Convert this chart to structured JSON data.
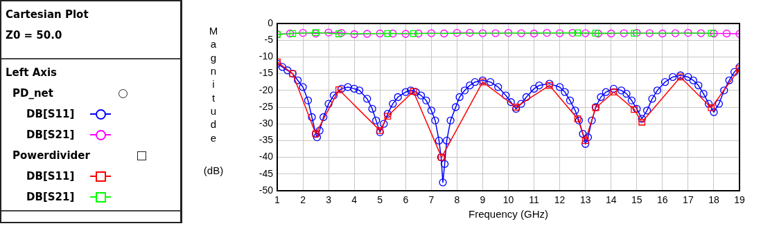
{
  "chart_data": {
    "type": "line",
    "title": "Cartesian Plot",
    "subtitle": "Z0 = 50.0",
    "legend_title": "Left Axis",
    "annotations": [
      "PD_net",
      "Powerdivider"
    ],
    "xlabel": "Frequency (GHz)",
    "ylabel": "Magnitude (dB)",
    "xlim": [
      1,
      19
    ],
    "xticks": [
      1,
      2,
      3,
      4,
      5,
      6,
      7,
      8,
      9,
      10,
      11,
      12,
      13,
      14,
      15,
      16,
      17,
      18,
      19
    ],
    "ylim": [
      -50,
      0
    ],
    "yticks": [
      -50,
      -45,
      -40,
      -35,
      -30,
      -25,
      -20,
      -15,
      -10,
      -5,
      0
    ],
    "grid": true,
    "legend": "left",
    "line_style": "solid",
    "series": [
      {
        "name": "DB[S11]",
        "color": "#0000ff",
        "marker": "circle",
        "x": [
          1,
          1.2,
          1.4,
          1.6,
          1.8,
          2.0,
          2.2,
          2.35,
          2.5,
          2.55,
          2.65,
          2.8,
          3.0,
          3.2,
          3.5,
          3.75,
          4.0,
          4.2,
          4.5,
          4.7,
          4.85,
          5.0,
          5.15,
          5.3,
          5.5,
          5.7,
          6.0,
          6.2,
          6.4,
          6.6,
          6.8,
          7.0,
          7.15,
          7.3,
          7.38,
          7.45,
          7.52,
          7.6,
          7.75,
          7.95,
          8.1,
          8.3,
          8.5,
          8.7,
          9.0,
          9.3,
          9.6,
          9.9,
          10.1,
          10.3,
          10.5,
          10.7,
          11.0,
          11.2,
          11.6,
          12.0,
          12.2,
          12.4,
          12.6,
          12.75,
          12.9,
          13.0,
          13.1,
          13.25,
          13.4,
          13.6,
          13.8,
          14.1,
          14.4,
          14.6,
          14.8,
          15.0,
          15.2,
          15.4,
          15.6,
          15.8,
          16.1,
          16.4,
          16.7,
          17.0,
          17.2,
          17.4,
          17.6,
          17.8,
          18.0,
          18.2,
          18.4,
          18.6,
          18.8,
          19.0
        ],
        "values": [
          -12,
          -13,
          -14,
          -15,
          -17,
          -19,
          -23,
          -28,
          -33,
          -34,
          -32,
          -28,
          -24,
          -21.5,
          -19.5,
          -19,
          -19.5,
          -20,
          -22.5,
          -25.5,
          -29,
          -32.5,
          -30,
          -27,
          -24,
          -22,
          -20.5,
          -20,
          -20.5,
          -21.5,
          -23,
          -26,
          -29,
          -35,
          -40,
          -47.5,
          -42,
          -35,
          -29,
          -25,
          -22,
          -20,
          -18.5,
          -17.5,
          -17,
          -17.5,
          -19,
          -21.5,
          -23.5,
          -25.5,
          -24,
          -22,
          -19.5,
          -18.5,
          -18,
          -19,
          -20.5,
          -23,
          -26,
          -29,
          -33,
          -36,
          -34,
          -29,
          -25,
          -22,
          -20.5,
          -19.5,
          -20,
          -21,
          -23,
          -25.5,
          -28.5,
          -26,
          -22.5,
          -20,
          -17.5,
          -16,
          -15.5,
          -16,
          -17,
          -18.5,
          -21,
          -24,
          -26.5,
          -24,
          -20,
          -17,
          -14.5,
          -13
        ]
      },
      {
        "name": "DB[S21]",
        "color": "#ff00ff",
        "marker": "circle",
        "x": [
          1,
          1.5,
          2,
          2.5,
          3,
          3.5,
          4,
          4.5,
          5,
          5.5,
          6,
          6.5,
          7,
          7.5,
          8,
          8.5,
          9,
          9.5,
          10,
          10.5,
          11,
          11.5,
          12,
          12.5,
          13,
          13.5,
          14,
          14.5,
          15,
          15.5,
          16,
          16.5,
          17,
          17.5,
          18,
          18.5,
          19
        ],
        "values": [
          -3.2,
          -3,
          -2.8,
          -3,
          -2.7,
          -2.8,
          -3.2,
          -3.1,
          -3,
          -3,
          -3.1,
          -3,
          -2.9,
          -3,
          -2.8,
          -2.8,
          -2.9,
          -2.9,
          -2.8,
          -2.9,
          -3,
          -2.8,
          -2.9,
          -2.8,
          -2.9,
          -3,
          -3,
          -2.9,
          -2.8,
          -2.9,
          -3,
          -2.9,
          -2.8,
          -2.9,
          -3,
          -3,
          -3.1
        ]
      },
      {
        "name": "DB[S11]",
        "color": "#ff0000",
        "marker": "square",
        "x": [
          1,
          1.6,
          2.5,
          3.4,
          5.0,
          5.3,
          6.3,
          7.4,
          9.0,
          10.3,
          11.6,
          12.7,
          13.0,
          13.4,
          14.1,
          14.9,
          15.2,
          16.7,
          17.9,
          19
        ],
        "values": [
          -11.5,
          -15,
          -33,
          -19.8,
          -32,
          -27.7,
          -20.3,
          -40,
          -17.5,
          -25,
          -18.5,
          -28.5,
          -35,
          -25.2,
          -20.5,
          -25.7,
          -29.5,
          -16,
          -25.2,
          -13.5
        ]
      },
      {
        "name": "DB[S21]",
        "color": "#00ff00",
        "marker": "square",
        "x": [
          1,
          1.6,
          2.5,
          3.4,
          5.3,
          6.3,
          12.7,
          13.4,
          14.9,
          17.9
        ],
        "values": [
          -3.3,
          -3,
          -2.7,
          -3.1,
          -3,
          -3,
          -2.8,
          -2.9,
          -2.9,
          -2.9
        ]
      }
    ]
  }
}
